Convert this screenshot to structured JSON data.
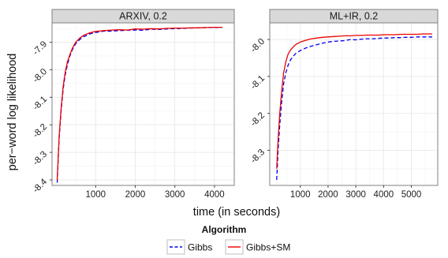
{
  "chart_data": [
    {
      "type": "line",
      "title": "ARXIV, 0.2",
      "xlabel": "time (in seconds)",
      "ylabel": "per−word log likelihood",
      "xlim": [
        -100,
        4500
      ],
      "ylim": [
        -8.42,
        -7.83
      ],
      "xticks": [
        1000,
        2000,
        3000,
        4000
      ],
      "xtick_labels": [
        "1000",
        "2000",
        "3000",
        "4000"
      ],
      "yticks": [
        -8.4,
        -8.3,
        -8.2,
        -8.1,
        -8.0,
        -7.9
      ],
      "ytick_labels": [
        "-8.4",
        "-8.3",
        "-8.2",
        "-8.1",
        "-8.0",
        "-7.9"
      ],
      "grid": true,
      "series": [
        {
          "name": "Gibbs",
          "x": [
            30,
            80,
            130,
            180,
            230,
            290,
            350,
            420,
            500,
            600,
            700,
            850,
            1000,
            1200,
            1400,
            1600,
            1800,
            2000,
            2200,
            2400,
            2600,
            2800,
            3000,
            3200,
            3400,
            3600,
            3800,
            4000,
            4200
          ],
          "y": [
            -8.41,
            -8.25,
            -8.15,
            -8.07,
            -8.02,
            -7.98,
            -7.95,
            -7.925,
            -7.905,
            -7.89,
            -7.88,
            -7.87,
            -7.865,
            -7.86,
            -7.86,
            -7.858,
            -7.857,
            -7.856,
            -7.857,
            -7.853,
            -7.854,
            -7.852,
            -7.851,
            -7.85,
            -7.849,
            -7.848,
            -7.847,
            -7.847,
            -7.846
          ]
        },
        {
          "name": "Gibbs+SM",
          "x": [
            30,
            80,
            130,
            180,
            230,
            290,
            350,
            420,
            500,
            600,
            700,
            850,
            1000,
            1200,
            1400,
            1600,
            1800,
            2000,
            2200,
            2400,
            2600,
            2800,
            3000,
            3200,
            3400,
            3600,
            3800,
            4000,
            4200
          ],
          "y": [
            -8.4,
            -8.24,
            -8.14,
            -8.06,
            -8.01,
            -7.97,
            -7.945,
            -7.92,
            -7.9,
            -7.885,
            -7.875,
            -7.866,
            -7.861,
            -7.858,
            -7.856,
            -7.855,
            -7.856,
            -7.852,
            -7.853,
            -7.851,
            -7.852,
            -7.85,
            -7.849,
            -7.849,
            -7.848,
            -7.848,
            -7.847,
            -7.846,
            -7.846
          ]
        }
      ]
    },
    {
      "type": "line",
      "title": "ML+IR, 0.2",
      "xlabel": "time (in seconds)",
      "ylabel": "per−word log likelihood",
      "xlim": [
        -100,
        5950
      ],
      "ylim": [
        -8.395,
        -7.955
      ],
      "xticks": [
        1000,
        2000,
        3000,
        4000,
        5000
      ],
      "xtick_labels": [
        "1000",
        "2000",
        "3000",
        "4000",
        "5000"
      ],
      "yticks": [
        -8.3,
        -8.2,
        -8.1,
        -8.0
      ],
      "ytick_labels": [
        "-8.3",
        "-8.2",
        "-8.1",
        "-8.0"
      ],
      "grid": true,
      "series": [
        {
          "name": "Gibbs",
          "x": [
            150,
            200,
            260,
            330,
            400,
            480,
            560,
            650,
            750,
            850,
            1000,
            1200,
            1400,
            1600,
            1800,
            2000,
            2200,
            2400,
            2600,
            2800,
            3000,
            3200,
            3400,
            3600,
            3800,
            4000,
            4200,
            4400,
            4600,
            4800,
            5000,
            5200,
            5400,
            5600,
            5750
          ],
          "y": [
            -8.38,
            -8.3,
            -8.23,
            -8.17,
            -8.12,
            -8.09,
            -8.07,
            -8.055,
            -8.045,
            -8.037,
            -8.03,
            -8.023,
            -8.018,
            -8.014,
            -8.01,
            -8.007,
            -8.005,
            -8.004,
            -8.003,
            -8.0,
            -8.001,
            -7.999,
            -7.998,
            -7.998,
            -7.997,
            -7.996,
            -7.996,
            -7.995,
            -7.995,
            -7.994,
            -7.994,
            -7.993,
            -7.993,
            -7.993,
            -7.993
          ]
        },
        {
          "name": "Gibbs+SM",
          "x": [
            150,
            200,
            260,
            330,
            400,
            480,
            560,
            650,
            750,
            850,
            1000,
            1200,
            1400,
            1600,
            1800,
            2000,
            2200,
            2400,
            2600,
            2800,
            3000,
            3200,
            3400,
            3600,
            3800,
            4000,
            4200,
            4400,
            4600,
            4800,
            5000,
            5200,
            5400,
            5600,
            5750
          ],
          "y": [
            -8.35,
            -8.27,
            -8.2,
            -8.14,
            -8.09,
            -8.06,
            -8.04,
            -8.028,
            -8.02,
            -8.013,
            -8.007,
            -8.002,
            -7.998,
            -7.996,
            -7.994,
            -7.993,
            -7.992,
            -7.991,
            -7.99,
            -7.99,
            -7.989,
            -7.989,
            -7.988,
            -7.988,
            -7.988,
            -7.987,
            -7.987,
            -7.987,
            -7.986,
            -7.986,
            -7.986,
            -7.986,
            -7.985,
            -7.985,
            -7.985
          ]
        }
      ]
    }
  ],
  "legend": {
    "title": "Algorithm",
    "placement": "bottom",
    "items": [
      {
        "name": "Gibbs",
        "color": "#0000ee",
        "dash": "dashed"
      },
      {
        "name": "Gibbs+SM",
        "color": "#ee0000",
        "dash": "solid"
      }
    ]
  },
  "axes": {
    "xlabel": "time (in seconds)",
    "ylabel": "per−word log likelihood"
  },
  "colors": {
    "panel_background": "#ffffff",
    "grid_major": "#ebebeb",
    "grid_minor": "#f5f5f5",
    "strip_background": "#d9d9d9",
    "border": "#808080"
  }
}
